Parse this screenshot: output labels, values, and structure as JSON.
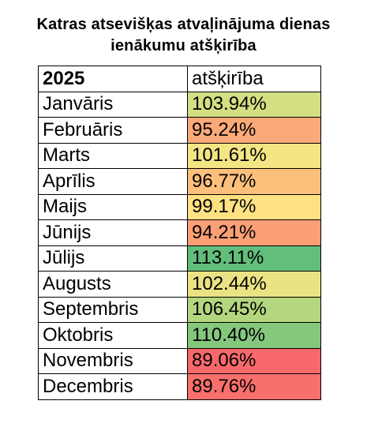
{
  "title": {
    "line1": "Katras atsevišķas atvaļinājuma dienas",
    "line2": "ienākumu atšķirība"
  },
  "table": {
    "header": {
      "year": "2025",
      "column": "atšķirība"
    },
    "rows": [
      {
        "month": "Janvāris",
        "value": "103.94%",
        "color": "#d3df82"
      },
      {
        "month": "Februāris",
        "value": "95.24%",
        "color": "#fba979"
      },
      {
        "month": "Marts",
        "value": "101.61%",
        "color": "#f3e584"
      },
      {
        "month": "Aprīlis",
        "value": "96.77%",
        "color": "#fdbf7c"
      },
      {
        "month": "Maijs",
        "value": "99.17%",
        "color": "#fee182"
      },
      {
        "month": "Jūnijs",
        "value": "94.21%",
        "color": "#fb9f77"
      },
      {
        "month": "Jūlijs",
        "value": "113.11%",
        "color": "#63be7b"
      },
      {
        "month": "Augusts",
        "value": "102.44%",
        "color": "#ebe383"
      },
      {
        "month": "Septembris",
        "value": "106.45%",
        "color": "#b4d67f"
      },
      {
        "month": "Oktobris",
        "value": "110.40%",
        "color": "#84c77d"
      },
      {
        "month": "Novembris",
        "value": "89.06%",
        "color": "#f8696b"
      },
      {
        "month": "Decembris",
        "value": "89.76%",
        "color": "#f8706c"
      }
    ]
  }
}
